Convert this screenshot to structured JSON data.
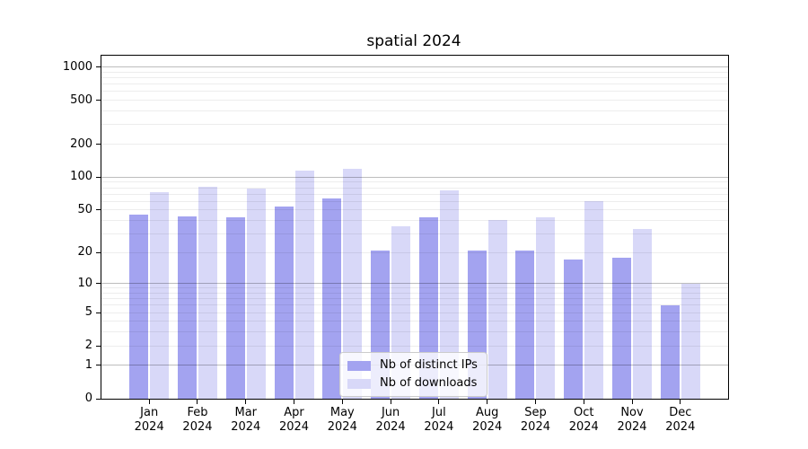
{
  "title": "spatial 2024",
  "chart_data": {
    "type": "bar",
    "title": "spatial 2024",
    "categories": [
      "Jan 2024",
      "Feb 2024",
      "Mar 2024",
      "Apr 2024",
      "May 2024",
      "Jun 2024",
      "Jul 2024",
      "Aug 2024",
      "Sep 2024",
      "Oct 2024",
      "Nov 2024",
      "Dec 2024"
    ],
    "series": [
      {
        "name": "Nb of distinct IPs",
        "color": "#a3a3f0",
        "values": [
          45,
          44,
          43,
          54,
          64,
          21,
          43,
          21,
          21,
          17,
          18,
          6
        ]
      },
      {
        "name": "Nb of downloads",
        "color": "#d8d8f8",
        "values": [
          73,
          81,
          79,
          115,
          120,
          35,
          76,
          40,
          43,
          60,
          33,
          10
        ]
      }
    ],
    "xlabel": "",
    "ylabel": "",
    "y_scale": "log1p",
    "y_tick_labels": [
      "0",
      "1",
      "2",
      "5",
      "10",
      "20",
      "50",
      "100",
      "200",
      "500",
      "1000"
    ],
    "y_tick_values": [
      0,
      1,
      2,
      5,
      10,
      20,
      50,
      100,
      200,
      500,
      1000
    ],
    "ylim": [
      0,
      1268
    ],
    "grid": "on",
    "grid_major_values": [
      1,
      10,
      100,
      1000
    ],
    "legend_position": "lower center"
  }
}
